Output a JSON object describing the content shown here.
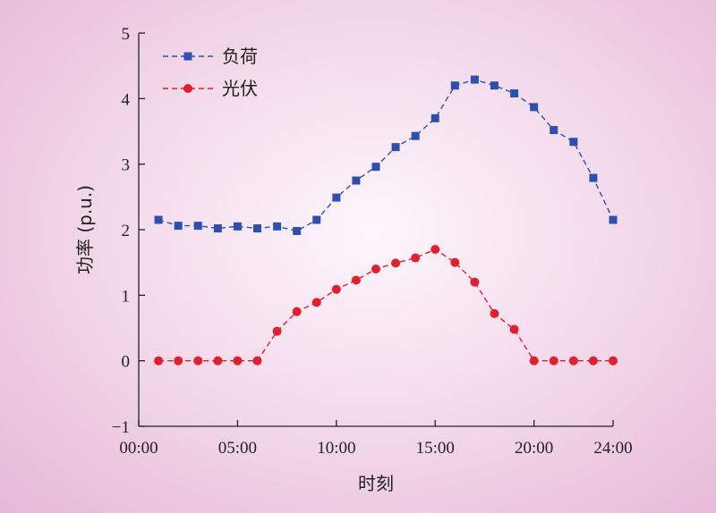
{
  "chart_data": {
    "type": "line",
    "xlabel": "时刻",
    "ylabel": "功率 (p.u.)",
    "xlim": [
      0,
      24
    ],
    "ylim": [
      -1,
      5
    ],
    "x_ticks": [
      {
        "value": 0,
        "label": "00:00"
      },
      {
        "value": 5,
        "label": "05:00"
      },
      {
        "value": 10,
        "label": "10:00"
      },
      {
        "value": 15,
        "label": "15:00"
      },
      {
        "value": 20,
        "label": "20:00"
      },
      {
        "value": 24,
        "label": "24:00"
      }
    ],
    "y_ticks": [
      {
        "value": -1,
        "label": "−1"
      },
      {
        "value": 0,
        "label": "0"
      },
      {
        "value": 1,
        "label": "1"
      },
      {
        "value": 2,
        "label": "2"
      },
      {
        "value": 3,
        "label": "3"
      },
      {
        "value": 4,
        "label": "4"
      },
      {
        "value": 5,
        "label": "5"
      }
    ],
    "x": [
      1,
      2,
      3,
      4,
      5,
      6,
      7,
      8,
      9,
      10,
      11,
      12,
      13,
      14,
      15,
      16,
      17,
      18,
      19,
      20,
      21,
      22,
      23,
      24
    ],
    "legend_position": "top-left",
    "grid": false,
    "series": [
      {
        "name": "负荷",
        "color": "#2e4fb0",
        "marker": "square",
        "values": [
          2.15,
          2.06,
          2.06,
          2.02,
          2.05,
          2.02,
          2.05,
          1.98,
          2.15,
          2.49,
          2.75,
          2.96,
          3.26,
          3.43,
          3.7,
          4.2,
          4.29,
          4.2,
          4.08,
          3.87,
          3.52,
          3.34,
          2.79,
          2.15
        ]
      },
      {
        "name": "光伏",
        "color": "#e0202e",
        "marker": "circle",
        "values": [
          0,
          0,
          0,
          0,
          0,
          0,
          0.45,
          0.75,
          0.89,
          1.09,
          1.23,
          1.4,
          1.49,
          1.57,
          1.7,
          1.5,
          1.2,
          0.72,
          0.48,
          0,
          0,
          0,
          0,
          0
        ]
      }
    ]
  }
}
